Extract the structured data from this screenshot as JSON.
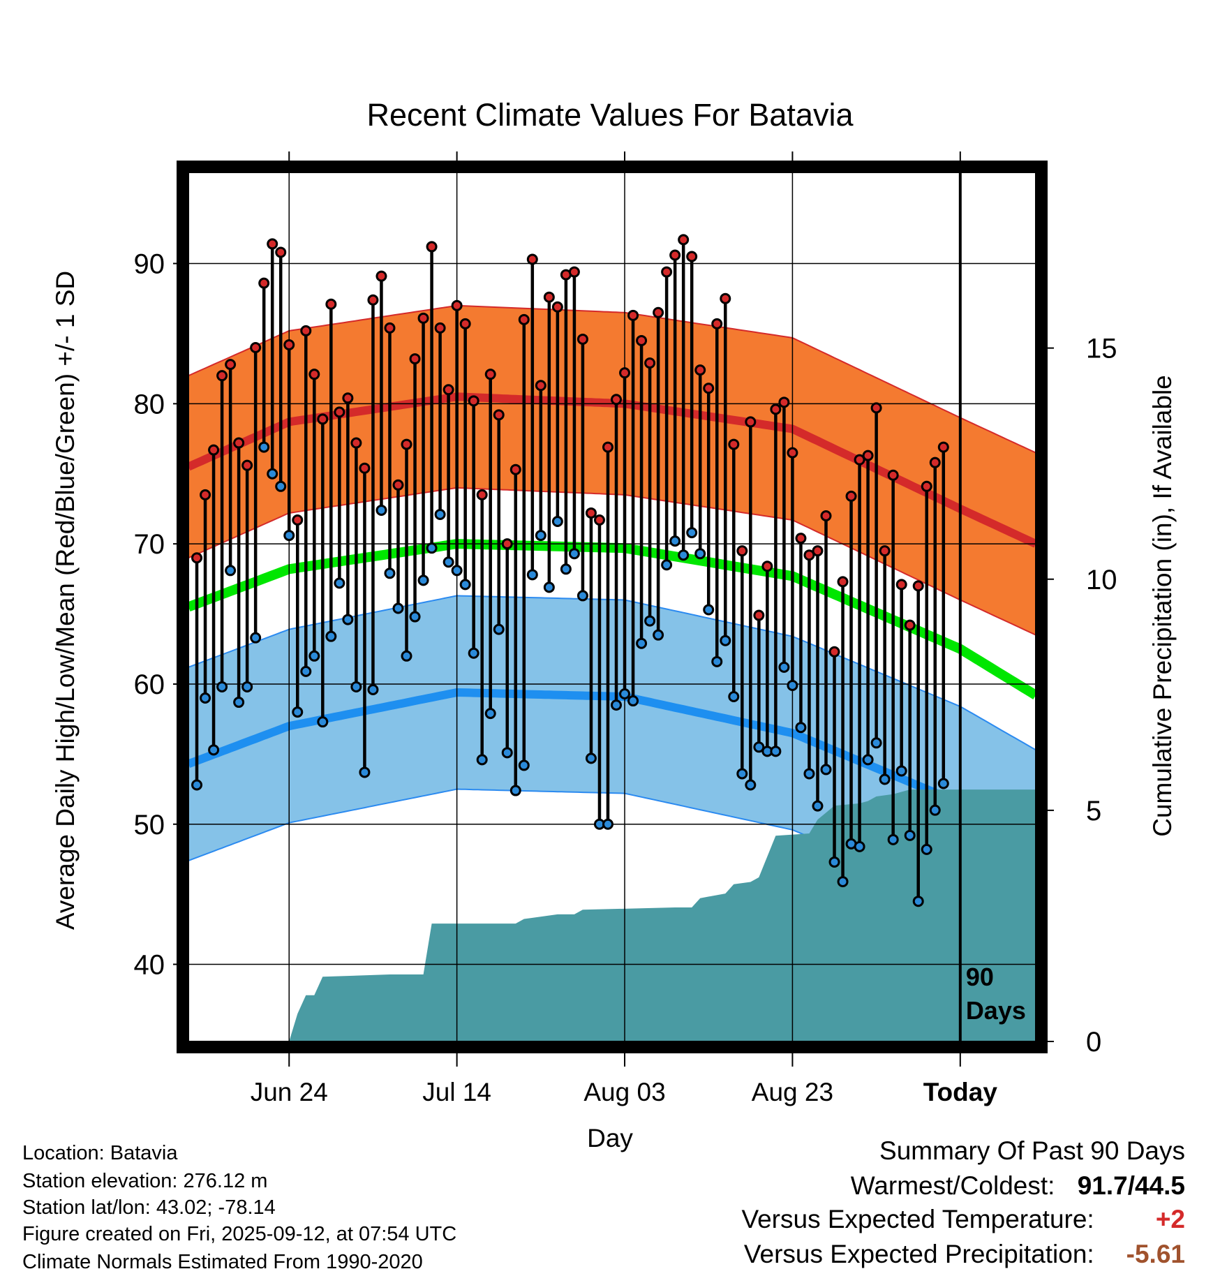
{
  "chart_data": {
    "type": "line",
    "title": "Recent Climate Values For Batavia",
    "xlabel": "Day",
    "ylabel": "Average Daily High/Low/Mean (Red/Blue/Green) +/- 1 SD",
    "y2label": "Cumulative Precipitation (in), If Available",
    "x_tick_labels": [
      "Jun 24",
      "Jul 14",
      "Aug 03",
      "Aug 23",
      "Today"
    ],
    "x_tick_days": [
      12,
      32,
      52,
      72,
      92
    ],
    "xlim": [
      0,
      101
    ],
    "ylim": [
      34.5,
      96.5
    ],
    "y_ticks": [
      40,
      50,
      60,
      70,
      80,
      90
    ],
    "y2lim": [
      0,
      18.8
    ],
    "y2_ticks": [
      0,
      5,
      10,
      15
    ],
    "grid": true,
    "today_marker": {
      "day": 92,
      "label_line1": "90",
      "label_line2": "Days"
    },
    "normals": {
      "high_mean": [
        [
          0,
          75.5
        ],
        [
          12,
          78.7
        ],
        [
          32,
          80.5
        ],
        [
          52,
          80.0
        ],
        [
          72,
          78.2
        ],
        [
          92,
          72.5
        ],
        [
          101,
          70.0
        ]
      ],
      "high_sd": 6.5,
      "low_mean": [
        [
          0,
          54.3
        ],
        [
          12,
          57.0
        ],
        [
          32,
          59.4
        ],
        [
          52,
          59.1
        ],
        [
          72,
          56.5
        ],
        [
          92,
          51.5
        ],
        [
          101,
          48.4
        ]
      ],
      "low_sd": 6.9,
      "mean": [
        [
          0,
          65.5
        ],
        [
          12,
          68.2
        ],
        [
          32,
          70.0
        ],
        [
          52,
          69.7
        ],
        [
          72,
          67.7
        ],
        [
          92,
          62.5
        ],
        [
          101,
          59.2
        ]
      ]
    },
    "series": [
      {
        "name": "Daily High",
        "color": "#d42a2a",
        "values": [
          69.0,
          73.5,
          76.7,
          82.0,
          82.8,
          77.2,
          75.6,
          84.0,
          88.6,
          91.4,
          90.8,
          84.2,
          71.7,
          85.2,
          82.1,
          78.9,
          87.1,
          79.4,
          80.4,
          77.2,
          75.4,
          87.4,
          89.1,
          85.4,
          74.2,
          77.1,
          83.2,
          86.1,
          91.2,
          85.4,
          81.0,
          87.0,
          85.7,
          80.2,
          73.5,
          82.1,
          79.2,
          70.0,
          75.3,
          86.0,
          90.3,
          81.3,
          87.6,
          86.9,
          89.2,
          89.4,
          84.6,
          72.2,
          71.7,
          76.9,
          80.3,
          82.2,
          86.3,
          84.5,
          82.9,
          86.5,
          89.4,
          90.6,
          91.7,
          90.5,
          82.4,
          81.1,
          85.7,
          87.5,
          77.1,
          69.5,
          78.7,
          64.9,
          68.4,
          79.6,
          80.1,
          76.5,
          70.4,
          69.2,
          69.5,
          72.0,
          62.3,
          67.3,
          73.4,
          76.0,
          76.3,
          79.7,
          69.5,
          74.9,
          67.1,
          64.2,
          67.0,
          74.1,
          75.8,
          76.9
        ]
      },
      {
        "name": "Daily Low",
        "color": "#2b8ad9",
        "values": [
          52.8,
          59.0,
          55.3,
          59.8,
          68.1,
          58.7,
          59.8,
          63.3,
          76.9,
          75.0,
          74.1,
          70.6,
          58.0,
          60.9,
          62.0,
          57.3,
          63.4,
          67.2,
          64.6,
          59.8,
          53.7,
          59.6,
          72.4,
          67.9,
          65.4,
          62.0,
          64.8,
          67.4,
          69.7,
          72.1,
          68.7,
          68.1,
          67.1,
          62.2,
          54.6,
          57.9,
          63.9,
          55.1,
          52.4,
          54.2,
          67.8,
          70.6,
          66.9,
          71.6,
          68.2,
          69.3,
          66.3,
          54.7,
          50.0,
          50.0,
          58.5,
          59.3,
          58.8,
          62.9,
          64.5,
          63.5,
          68.5,
          70.2,
          69.2,
          70.8,
          69.3,
          65.3,
          61.6,
          63.1,
          59.1,
          53.6,
          52.8,
          55.5,
          55.2,
          55.2,
          61.2,
          59.9,
          56.9,
          53.6,
          51.3,
          53.9,
          47.3,
          45.9,
          48.6,
          48.4,
          54.6,
          55.8,
          53.2,
          48.9,
          53.8,
          49.2,
          44.5,
          48.2,
          51.0,
          52.9
        ]
      },
      {
        "name": "Cumulative Precipitation",
        "color": "#4a9ba3",
        "unit": "in",
        "steps": [
          [
            0,
            0.0
          ],
          [
            12,
            0.0
          ],
          [
            13,
            0.6
          ],
          [
            14,
            1.0
          ],
          [
            15,
            1.0
          ],
          [
            16,
            1.4
          ],
          [
            24,
            1.45
          ],
          [
            28,
            1.45
          ],
          [
            29,
            2.55
          ],
          [
            39,
            2.55
          ],
          [
            40,
            2.65
          ],
          [
            44,
            2.75
          ],
          [
            46,
            2.75
          ],
          [
            47,
            2.85
          ],
          [
            58,
            2.9
          ],
          [
            60,
            2.9
          ],
          [
            61,
            3.1
          ],
          [
            64,
            3.2
          ],
          [
            65,
            3.4
          ],
          [
            67,
            3.45
          ],
          [
            68,
            3.55
          ],
          [
            70,
            4.45
          ],
          [
            74,
            4.5
          ],
          [
            75,
            4.8
          ],
          [
            76,
            4.95
          ],
          [
            77,
            5.1
          ],
          [
            80,
            5.15
          ],
          [
            81,
            5.2
          ],
          [
            82,
            5.3
          ],
          [
            84,
            5.35
          ],
          [
            86,
            5.45
          ],
          [
            101,
            5.45
          ]
        ]
      }
    ]
  },
  "info": {
    "location": "Location: Batavia",
    "elevation": "Station elevation: 276.12 m",
    "latlon": "Station lat/lon: 43.02; -78.14",
    "created": "Figure created on Fri, 2025-09-12, at 07:54 UTC",
    "normals_note": "Climate Normals Estimated From 1990-2020"
  },
  "summary": {
    "heading": "Summary Of Past 90 Days",
    "warm_cold_label": "Warmest/Coldest:",
    "warm_cold_value": "91.7/44.5",
    "temp_label": "Versus Expected Temperature:",
    "temp_value": "+2",
    "temp_color": "#d42a2a",
    "precip_label": "Versus Expected Precipitation:",
    "precip_value": "-5.61",
    "precip_color": "#a0522d"
  }
}
